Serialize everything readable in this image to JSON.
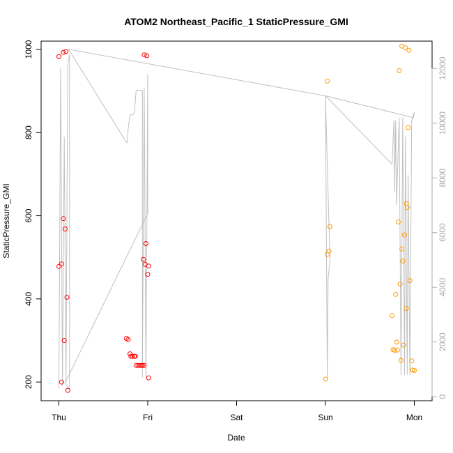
{
  "chart_data": {
    "type": "scatter",
    "title": "ATOM2 Northeast_Pacific_1 StaticPressure_GMI",
    "xlabel": "Date",
    "ylabel": "StaticPressure_GMI",
    "x_ticks": [
      {
        "label": "Thu",
        "day": 0
      },
      {
        "label": "Fri",
        "day": 1
      },
      {
        "label": "Sat",
        "day": 2
      },
      {
        "label": "Sun",
        "day": 3
      },
      {
        "label": "Mon",
        "day": 4
      }
    ],
    "xlim": [
      -0.2,
      4.2
    ],
    "ylim": [
      155,
      1020
    ],
    "y_ticks": [
      200,
      400,
      600,
      800,
      1000
    ],
    "y2lim": [
      -150,
      13000
    ],
    "y2_ticks": [
      0,
      2000,
      4000,
      6000,
      8000,
      10000,
      12000
    ],
    "grid": false,
    "colors": {
      "series_red": "#ff0000",
      "series_orange": "#ff9900",
      "line_gray": "#c0c0c0",
      "right_axis": "#aaaaaa"
    },
    "series": [
      {
        "color": "#ff0000",
        "points": [
          [
            0.0,
            983
          ],
          [
            0.03,
            200
          ],
          [
            0.0,
            478
          ],
          [
            0.03,
            484
          ],
          [
            0.05,
            993
          ],
          [
            0.08,
            995
          ],
          [
            0.05,
            593
          ],
          [
            0.07,
            568
          ],
          [
            0.06,
            300
          ],
          [
            0.09,
            404
          ],
          [
            0.1,
            180
          ],
          [
            0.76,
            305
          ],
          [
            0.78,
            302
          ],
          [
            0.8,
            268
          ],
          [
            0.81,
            262
          ],
          [
            0.83,
            262
          ],
          [
            0.85,
            262
          ],
          [
            0.86,
            262
          ],
          [
            0.87,
            240
          ],
          [
            0.89,
            240
          ],
          [
            0.91,
            240
          ],
          [
            0.93,
            240
          ],
          [
            0.94,
            240
          ],
          [
            0.96,
            240
          ],
          [
            0.95,
            495
          ],
          [
            0.96,
            987
          ],
          [
            0.97,
            483
          ],
          [
            0.98,
            533
          ],
          [
            0.99,
            985
          ],
          [
            1.0,
            459
          ],
          [
            1.01,
            210
          ],
          [
            1.01,
            479
          ]
        ]
      },
      {
        "color": "#ff9900",
        "points": [
          [
            3.0,
            207
          ],
          [
            3.02,
            924
          ],
          [
            3.02,
            507
          ],
          [
            3.04,
            515
          ],
          [
            3.05,
            574
          ],
          [
            3.75,
            360
          ],
          [
            3.76,
            278
          ],
          [
            3.78,
            276
          ],
          [
            3.79,
            411
          ],
          [
            3.8,
            296
          ],
          [
            3.81,
            277
          ],
          [
            3.82,
            585
          ],
          [
            3.83,
            949
          ],
          [
            3.84,
            436
          ],
          [
            3.85,
            252
          ],
          [
            3.86,
            520
          ],
          [
            3.86,
            1008
          ],
          [
            3.87,
            491
          ],
          [
            3.88,
            289
          ],
          [
            3.89,
            554
          ],
          [
            3.9,
            1004
          ],
          [
            3.91,
            629
          ],
          [
            3.91,
            377
          ],
          [
            3.92,
            620
          ],
          [
            3.93,
            812
          ],
          [
            3.94,
            998
          ],
          [
            3.95,
            444
          ],
          [
            3.97,
            251
          ],
          [
            3.98,
            229
          ],
          [
            4.0,
            228
          ]
        ]
      }
    ],
    "secondary_line": [
      [
        0.0,
        300
      ],
      [
        0.02,
        12000
      ],
      [
        0.04,
        400
      ],
      [
        0.06,
        9500
      ],
      [
        0.08,
        500
      ],
      [
        0.1,
        12200
      ],
      [
        0.12,
        12500
      ],
      [
        0.12,
        250
      ],
      [
        0.07,
        500
      ],
      [
        1.0,
        6700
      ],
      [
        1.0,
        11800
      ],
      [
        0.98,
        700
      ],
      [
        0.96,
        11300
      ],
      [
        0.94,
        700
      ],
      [
        0.94,
        11200
      ],
      [
        0.9,
        11200
      ],
      [
        0.87,
        11200
      ],
      [
        0.85,
        10400
      ],
      [
        0.83,
        10300
      ],
      [
        0.8,
        10300
      ],
      [
        0.78,
        9800
      ],
      [
        0.77,
        9300
      ],
      [
        0.76,
        9300
      ],
      [
        0.11,
        12700
      ],
      [
        3.0,
        11000
      ],
      [
        3.05,
        5000
      ],
      [
        3.03,
        4300
      ],
      [
        3.02,
        700
      ],
      [
        3.0,
        11000
      ],
      [
        3.75,
        8500
      ],
      [
        3.77,
        10100
      ],
      [
        3.78,
        7500
      ],
      [
        3.79,
        10100
      ],
      [
        3.8,
        7000
      ],
      [
        3.83,
        10200
      ],
      [
        3.85,
        800
      ],
      [
        3.87,
        10200
      ],
      [
        3.89,
        800
      ],
      [
        3.9,
        9500
      ],
      [
        3.92,
        800
      ],
      [
        3.93,
        8100
      ],
      [
        3.95,
        800
      ],
      [
        3.97,
        10100
      ],
      [
        4.0,
        10400
      ],
      [
        3.99,
        10200
      ],
      [
        3.0,
        11000
      ]
    ]
  }
}
